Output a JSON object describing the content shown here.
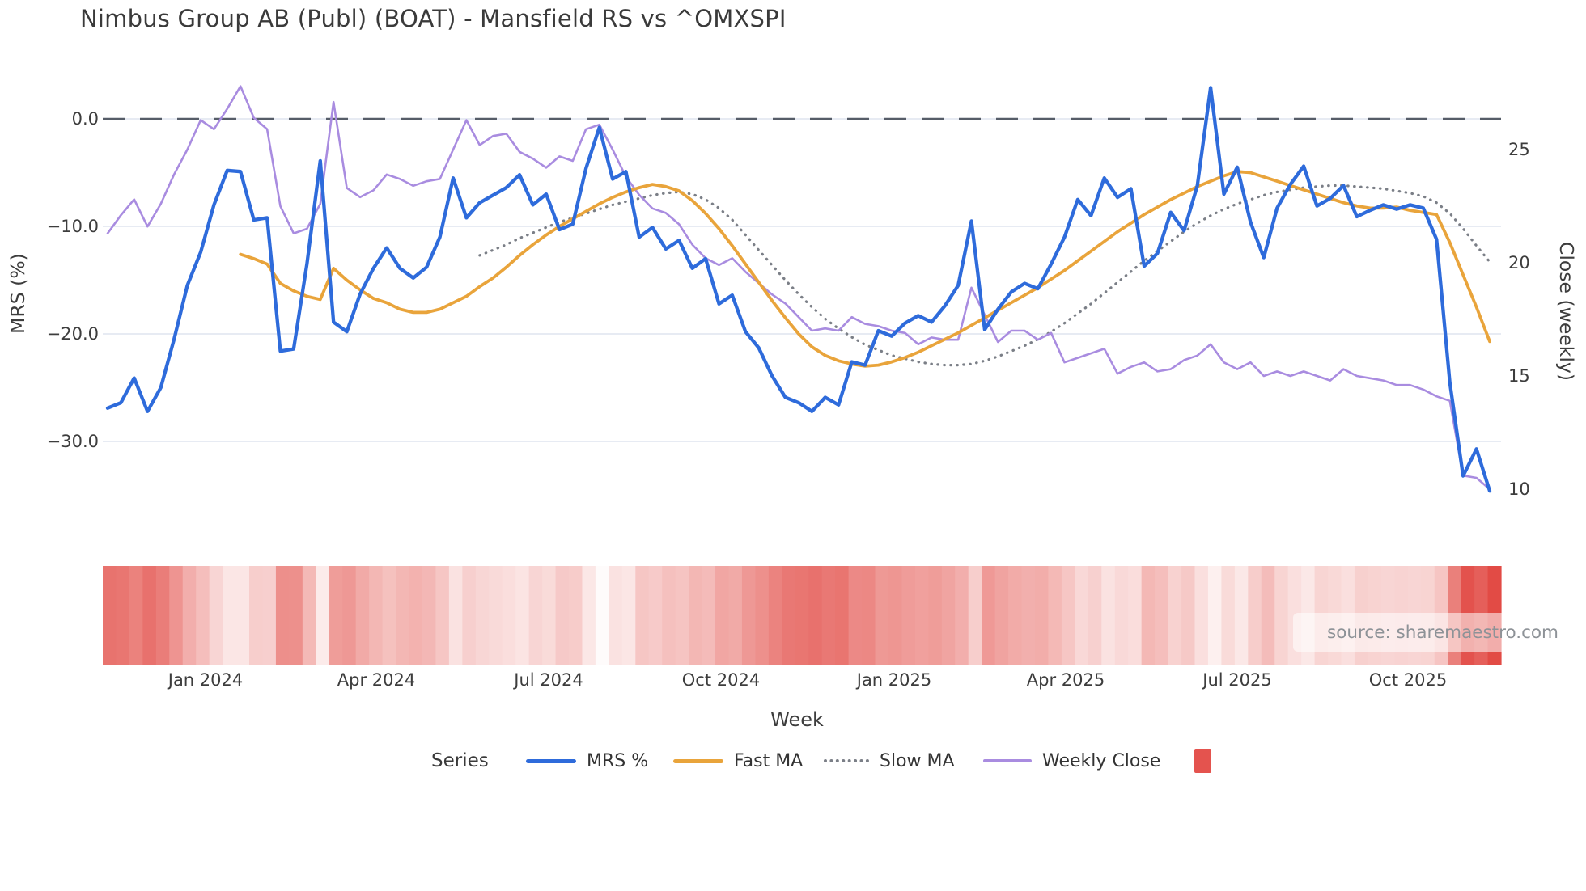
{
  "title": "Nimbus Group AB (Publ) (BOAT) - Mansfield RS vs ^OMXSPI",
  "source": {
    "label": "source: sharemaestro.com"
  },
  "colors": {
    "mrs_line": "#2e6bdb",
    "fast_ma_line": "#e9a43b",
    "slow_ma_line": "#7b7f87",
    "weekly_close_line": "#a98ce0",
    "zero_dash_line": "#565d68",
    "gridline": "#e7ebf3",
    "heatmap_high": "#e24b45",
    "heatmap_low": "#ffffff",
    "legend_square": "#e4534e",
    "text_dark": "#3a3a3a",
    "text_tick": "#3d3d3d",
    "source_text": "#8d9297"
  },
  "chart_data": {
    "type": "line",
    "title": "Nimbus Group AB (Publ) (BOAT) - Mansfield RS vs ^OMXSPI",
    "xlabel": "Week",
    "x": {
      "unit": "week",
      "n_points": 105,
      "first_week": "mid-Nov 2023",
      "last_week": "mid-Nov 2025",
      "ticks": [
        {
          "label": "Jan 2024",
          "i": 7.37
        },
        {
          "label": "Apr 2024",
          "i": 20.22
        },
        {
          "label": "Jul 2024",
          "i": 33.19
        },
        {
          "label": "Oct 2024",
          "i": 46.16
        },
        {
          "label": "Jan 2025",
          "i": 59.2
        },
        {
          "label": "Apr 2025",
          "i": 72.1
        },
        {
          "label": "Jul 2025",
          "i": 85.0
        },
        {
          "label": "Oct 2025",
          "i": 97.85
        }
      ]
    },
    "axes": {
      "left": {
        "label": "MRS (%)",
        "ticks": [
          {
            "label": "0.0",
            "value": 0
          },
          {
            "label": "−10.0",
            "value": -10
          },
          {
            "label": "−20.0",
            "value": -20
          },
          {
            "label": "−30.0",
            "value": -30
          }
        ],
        "range": [
          -36,
          4
        ],
        "grid": true
      },
      "right": {
        "label": "Close (weekly)",
        "ticks": [
          {
            "label": "25",
            "value": 25
          },
          {
            "label": "20",
            "value": 20
          },
          {
            "label": "15",
            "value": 15
          },
          {
            "label": "10",
            "value": 10
          }
        ],
        "range": [
          9.2,
          28.3
        ],
        "grid": false
      }
    },
    "zero_line": {
      "value": 0,
      "axis": "left",
      "style": "dashed",
      "color": "#565d68"
    },
    "legend": {
      "title": "Series",
      "position": "bottom-center",
      "items": [
        {
          "label": "MRS %",
          "swatch": "line",
          "color": "#2e6bdb"
        },
        {
          "label": "Fast MA",
          "swatch": "line",
          "color": "#e9a43b"
        },
        {
          "label": "Slow MA",
          "swatch": "dotted",
          "color": "#7b7f87"
        },
        {
          "label": "Weekly Close",
          "swatch": "line",
          "color": "#a98ce0"
        },
        {
          "label": "",
          "swatch": "square",
          "color": "#e4534e"
        }
      ]
    },
    "heatmap_strip": {
      "description": "weekly red-intensity strip below plot; darker red = more negative MRS %",
      "source_series": "MRS %",
      "scale_abs_max": 34.6,
      "low_color": "#ffffff",
      "high_color": "#e24b45"
    },
    "series": [
      {
        "name": "MRS %",
        "axis": "left",
        "style": "solid",
        "color": "#2e6bdb",
        "width": 4.3,
        "values": [
          -26.9,
          -26.4,
          -24.1,
          -27.2,
          -25.0,
          -20.5,
          -15.5,
          -12.4,
          -8.0,
          -4.8,
          -4.9,
          -9.4,
          -9.2,
          -21.6,
          -21.4,
          -13.5,
          -3.9,
          -18.9,
          -19.8,
          -16.3,
          -13.9,
          -12.0,
          -13.9,
          -14.8,
          -13.8,
          -11.0,
          -5.5,
          -9.2,
          -7.8,
          -7.1,
          -6.4,
          -5.2,
          -8.0,
          -7.0,
          -10.3,
          -9.8,
          -4.6,
          -0.8,
          -5.6,
          -4.9,
          -11.0,
          -10.1,
          -12.1,
          -11.3,
          -13.9,
          -13.0,
          -17.2,
          -16.4,
          -19.8,
          -21.3,
          -23.9,
          -25.9,
          -26.4,
          -27.2,
          -25.9,
          -26.6,
          -22.6,
          -22.9,
          -19.7,
          -20.2,
          -19.0,
          -18.3,
          -18.9,
          -17.4,
          -15.5,
          -9.5,
          -19.6,
          -17.7,
          -16.1,
          -15.3,
          -15.8,
          -13.5,
          -11.0,
          -7.5,
          -9.0,
          -5.5,
          -7.3,
          -6.5,
          -13.7,
          -12.5,
          -8.7,
          -10.4,
          -6.2,
          2.9,
          -7.0,
          -4.5,
          -9.6,
          -12.9,
          -8.3,
          -6.1,
          -4.4,
          -8.1,
          -7.4,
          -6.2,
          -9.1,
          -8.5,
          -8.0,
          -8.4,
          -8.0,
          -8.3,
          -11.2,
          -24.5,
          -33.2,
          -30.7,
          -34.6
        ]
      },
      {
        "name": "Fast MA",
        "axis": "left",
        "style": "solid",
        "color": "#e9a43b",
        "width": 3.8,
        "values": [
          null,
          null,
          null,
          null,
          null,
          null,
          null,
          null,
          null,
          null,
          -12.6,
          -13.0,
          -13.5,
          -15.3,
          -16.0,
          -16.5,
          -16.8,
          -13.9,
          -15.0,
          -15.9,
          -16.7,
          -17.1,
          -17.7,
          -18.0,
          -18.0,
          -17.7,
          -17.1,
          -16.5,
          -15.6,
          -14.8,
          -13.8,
          -12.7,
          -11.7,
          -10.8,
          -10.0,
          -9.3,
          -8.6,
          -7.9,
          -7.3,
          -6.8,
          -6.4,
          -6.1,
          -6.3,
          -6.7,
          -7.6,
          -8.8,
          -10.2,
          -11.8,
          -13.5,
          -15.2,
          -16.9,
          -18.5,
          -20.0,
          -21.2,
          -22.0,
          -22.5,
          -22.8,
          -23.0,
          -22.9,
          -22.6,
          -22.2,
          -21.7,
          -21.1,
          -20.5,
          -19.9,
          -19.2,
          -18.5,
          -17.8,
          -17.1,
          -16.4,
          -15.7,
          -14.9,
          -14.1,
          -13.2,
          -12.3,
          -11.4,
          -10.5,
          -9.7,
          -8.9,
          -8.2,
          -7.5,
          -6.9,
          -6.3,
          -5.8,
          -5.3,
          -4.9,
          -5.0,
          -5.4,
          -5.8,
          -6.2,
          -6.6,
          -7.0,
          -7.4,
          -7.8,
          -8.1,
          -8.3,
          -8.3,
          -8.2,
          -8.5,
          -8.7,
          -8.9,
          -11.5,
          -14.5,
          -17.5,
          -20.7
        ]
      },
      {
        "name": "Slow MA",
        "axis": "left",
        "style": "dotted",
        "color": "#7b7f87",
        "width": 3.2,
        "values": [
          null,
          null,
          null,
          null,
          null,
          null,
          null,
          null,
          null,
          null,
          null,
          null,
          null,
          null,
          null,
          null,
          null,
          null,
          null,
          null,
          null,
          null,
          null,
          null,
          null,
          null,
          null,
          null,
          -12.7,
          -12.2,
          -11.7,
          -11.1,
          -10.6,
          -10.1,
          -9.6,
          -9.2,
          -8.8,
          -8.4,
          -8.0,
          -7.7,
          -7.4,
          -7.1,
          -6.9,
          -6.8,
          -7.0,
          -7.5,
          -8.3,
          -9.4,
          -10.8,
          -12.2,
          -13.6,
          -15.0,
          -16.3,
          -17.5,
          -18.6,
          -19.5,
          -20.3,
          -21.0,
          -21.5,
          -22.0,
          -22.3,
          -22.6,
          -22.8,
          -22.9,
          -22.9,
          -22.8,
          -22.5,
          -22.1,
          -21.6,
          -21.1,
          -20.5,
          -19.8,
          -19.0,
          -18.1,
          -17.2,
          -16.2,
          -15.2,
          -14.2,
          -13.2,
          -12.3,
          -11.4,
          -10.5,
          -9.7,
          -9.0,
          -8.4,
          -7.9,
          -7.5,
          -7.1,
          -6.8,
          -6.6,
          -6.4,
          -6.3,
          -6.2,
          -6.2,
          -6.3,
          -6.4,
          -6.5,
          -6.7,
          -6.9,
          -7.2,
          -7.8,
          -8.8,
          -10.2,
          -11.8,
          -13.3
        ]
      },
      {
        "name": "Weekly Close",
        "axis": "right",
        "style": "solid",
        "color": "#a98ce0",
        "width": 2.6,
        "values": [
          21.3,
          22.1,
          22.8,
          21.6,
          22.6,
          23.9,
          25.0,
          26.3,
          25.9,
          26.8,
          27.8,
          26.4,
          25.9,
          22.5,
          21.3,
          21.5,
          22.6,
          27.1,
          23.3,
          22.9,
          23.2,
          23.9,
          23.7,
          23.4,
          23.6,
          23.7,
          25.0,
          26.3,
          25.2,
          25.6,
          25.7,
          24.9,
          24.6,
          24.2,
          24.7,
          24.5,
          25.9,
          26.1,
          25.0,
          23.8,
          23.0,
          22.4,
          22.2,
          21.7,
          20.8,
          20.2,
          19.9,
          20.2,
          19.6,
          19.1,
          18.6,
          18.2,
          17.6,
          17.0,
          17.1,
          17.0,
          17.6,
          17.3,
          17.2,
          17.0,
          16.9,
          16.4,
          16.7,
          16.6,
          16.6,
          18.9,
          17.7,
          16.5,
          17.0,
          17.0,
          16.6,
          16.9,
          15.6,
          15.8,
          16.0,
          16.2,
          15.1,
          15.4,
          15.6,
          15.2,
          15.3,
          15.7,
          15.9,
          16.4,
          15.6,
          15.3,
          15.6,
          15.0,
          15.2,
          15.0,
          15.2,
          15.0,
          14.8,
          15.3,
          15.0,
          14.9,
          14.8,
          14.6,
          14.6,
          14.4,
          14.1,
          13.9,
          10.6,
          10.5,
          10.0
        ]
      }
    ]
  }
}
